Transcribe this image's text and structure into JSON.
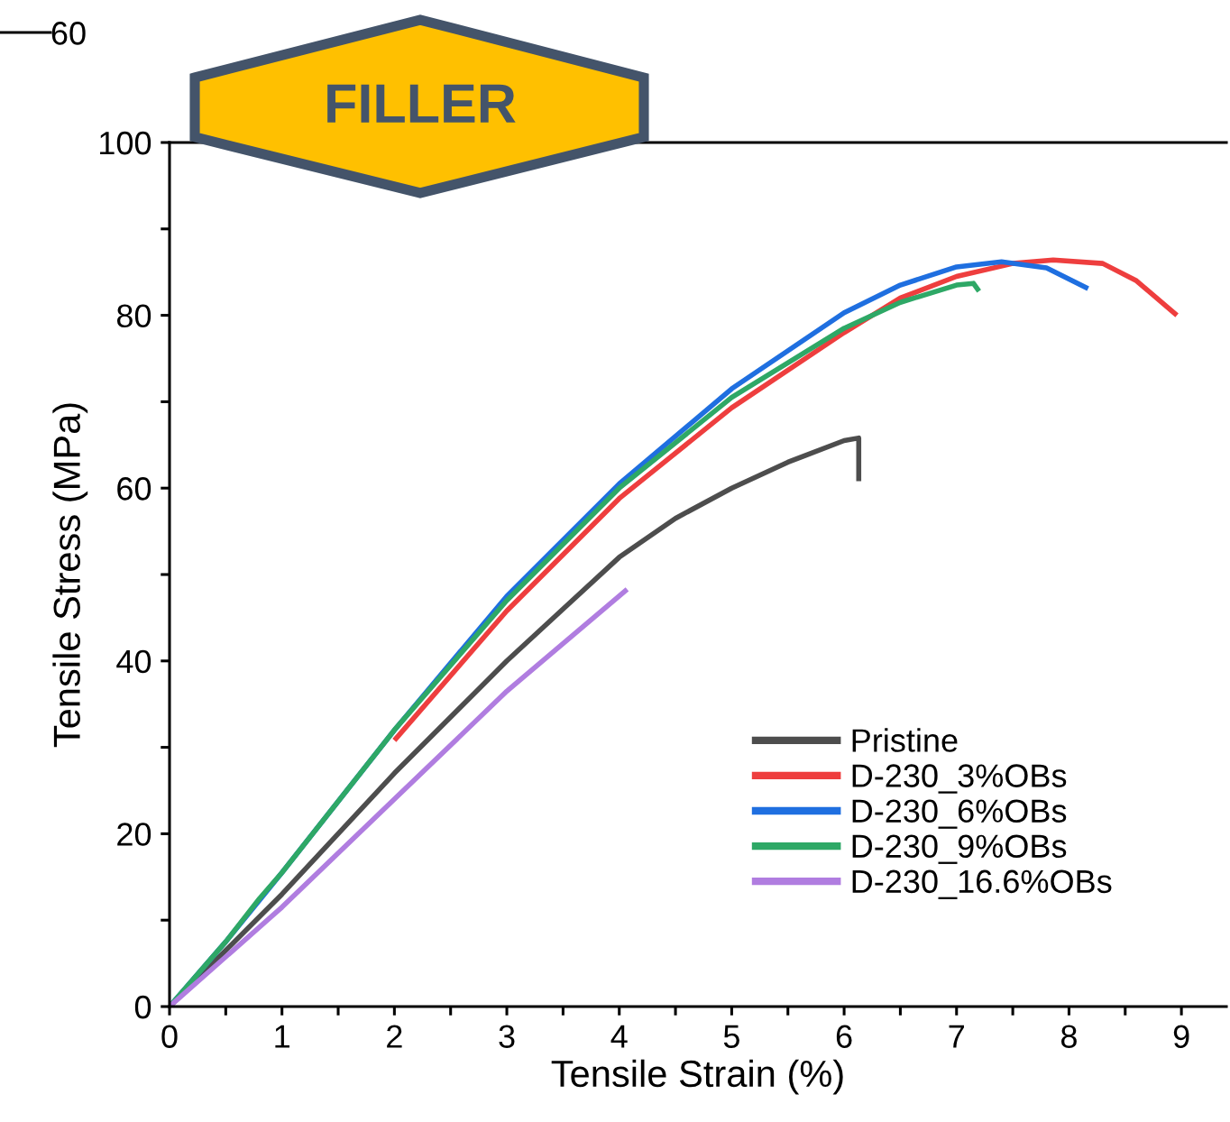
{
  "chart_data": {
    "type": "line",
    "xlabel": "Tensile Strain (%)",
    "ylabel": "Tensile Stress (MPa)",
    "annotations": [
      "FILLER",
      "60"
    ],
    "xlim": [
      0,
      9.4
    ],
    "ylim": [
      0,
      100
    ],
    "xticks": [
      0,
      {
        "value": 0.5,
        "label": null
      },
      1,
      {
        "value": 1.5,
        "label": null
      },
      2,
      {
        "value": 2.5,
        "label": null
      },
      3,
      {
        "value": 3.5,
        "label": null
      },
      4,
      {
        "value": 4.5,
        "label": null
      },
      5,
      {
        "value": 5.5,
        "label": null
      },
      6,
      {
        "value": 6.5,
        "label": null
      },
      7,
      {
        "value": 7.5,
        "label": null
      },
      8,
      {
        "value": 8.5,
        "label": null
      },
      9
    ],
    "yticks": [
      0,
      {
        "value": 10,
        "label": null
      },
      20,
      {
        "value": 30,
        "label": null
      },
      40,
      {
        "value": 50,
        "label": null
      },
      60,
      {
        "value": 70,
        "label": null
      },
      80,
      {
        "value": 90,
        "label": null
      },
      100
    ],
    "grid": false,
    "legend": "bottom right",
    "marker": "none",
    "line_style": "solid",
    "series": [
      {
        "name": "Pristine",
        "color": "#4d4d4d",
        "x": [
          0,
          0.5,
          1,
          2,
          3,
          3.5,
          4,
          4.5,
          5,
          5.5,
          6,
          6.13,
          6.13
        ],
        "values": [
          0,
          6.5,
          13,
          27,
          40,
          46,
          52,
          56.5,
          60,
          63,
          65.5,
          65.8,
          60.8
        ]
      },
      {
        "name": "D-230_3%OBs",
        "color": "#ee3e3e",
        "x": [
          2,
          3,
          4,
          5,
          6,
          6.5,
          7,
          7.5,
          7.86,
          8.3,
          8.6,
          8.96
        ],
        "values": [
          30.8,
          45.8,
          58.8,
          69.3,
          78,
          82,
          84.5,
          86,
          86.4,
          86,
          84,
          80
        ]
      },
      {
        "name": "D-230_6%OBs",
        "color": "#1f6fe0",
        "x": [
          0,
          0.5,
          1,
          2,
          3,
          4,
          5,
          6,
          6.5,
          7,
          7.4,
          7.8,
          8.17
        ],
        "values": [
          0,
          7.5,
          15.5,
          32,
          47.5,
          60.5,
          71.5,
          80.3,
          83.5,
          85.6,
          86.2,
          85.5,
          83.1
        ]
      },
      {
        "name": "D-230_9%OBs",
        "color": "#2ea866",
        "x": [
          0,
          0.5,
          0.8,
          1,
          2,
          3,
          4,
          5,
          6,
          6.5,
          7,
          7.15,
          7.2
        ],
        "values": [
          0,
          7.5,
          12.5,
          15.5,
          32,
          47,
          60,
          70.5,
          78.5,
          81.5,
          83.5,
          83.7,
          82.8
        ]
      },
      {
        "name": "D-230_16.6%OBs",
        "color": "#b07de0",
        "x": [
          0,
          1,
          2,
          3,
          4.07
        ],
        "values": [
          0,
          11.5,
          24,
          36.5,
          48.3
        ]
      }
    ]
  }
}
